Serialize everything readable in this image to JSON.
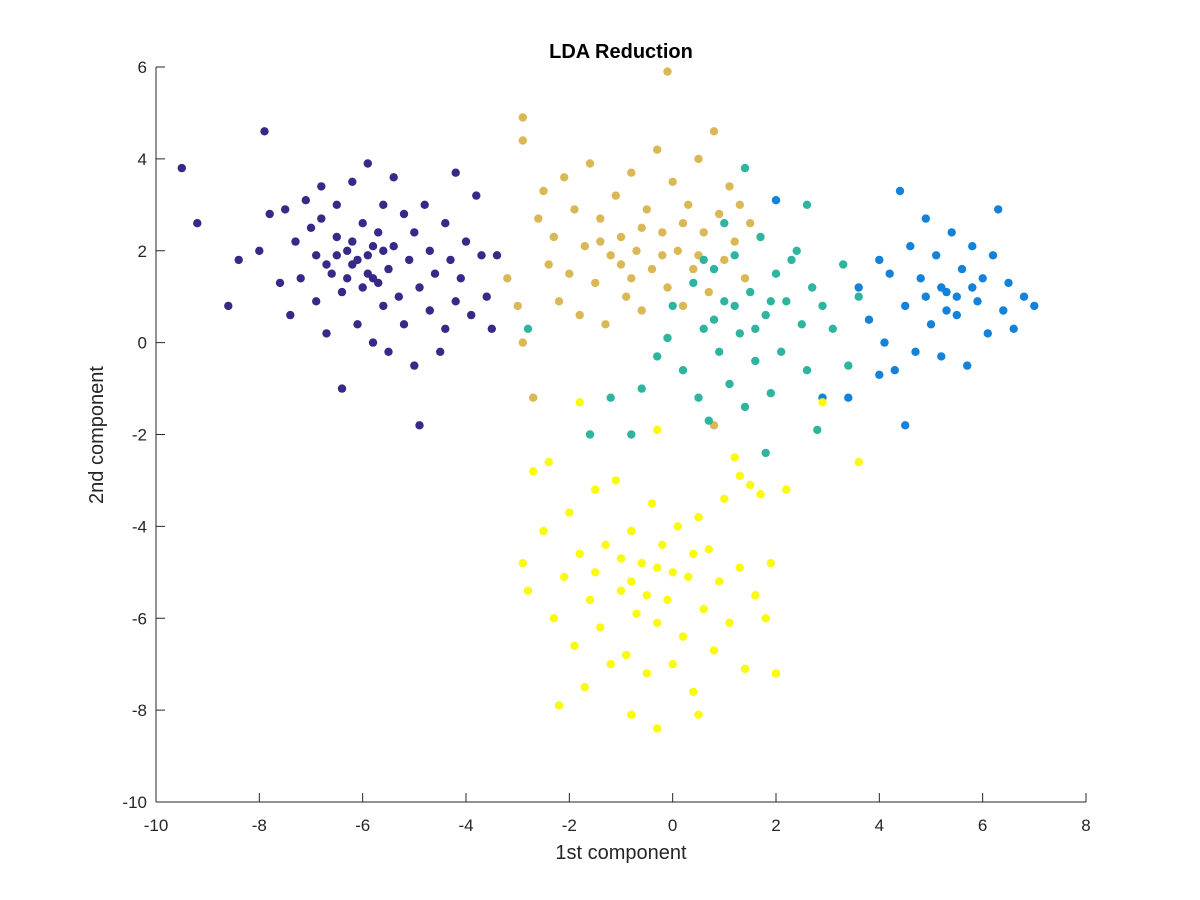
{
  "chart_data": {
    "type": "scatter",
    "title": "LDA Reduction",
    "xlabel": "1st component",
    "ylabel": "2nd component",
    "xlim": [
      -10,
      8
    ],
    "ylim": [
      -10,
      6
    ],
    "xticks": [
      -10,
      -8,
      -6,
      -4,
      -2,
      0,
      2,
      4,
      6,
      8
    ],
    "yticks": [
      -10,
      -8,
      -6,
      -4,
      -2,
      0,
      2,
      4,
      6
    ],
    "xtick_labels": [
      "-10",
      "-8",
      "-6",
      "-4",
      "-2",
      "0",
      "2",
      "4",
      "6",
      "8"
    ],
    "ytick_labels": [
      "-10",
      "-8",
      "-6",
      "-4",
      "-2",
      "0",
      "2",
      "4",
      "6"
    ],
    "grid": false,
    "series": [
      {
        "color": "#352a87",
        "points": [
          [
            -9.5,
            3.8
          ],
          [
            -9.2,
            2.6
          ],
          [
            -8.6,
            0.8
          ],
          [
            -8.4,
            1.8
          ],
          [
            -8.0,
            2.0
          ],
          [
            -7.9,
            4.6
          ],
          [
            -7.8,
            2.8
          ],
          [
            -7.6,
            1.3
          ],
          [
            -7.5,
            2.9
          ],
          [
            -7.4,
            0.6
          ],
          [
            -7.3,
            2.2
          ],
          [
            -7.2,
            1.4
          ],
          [
            -7.1,
            3.1
          ],
          [
            -7.0,
            2.5
          ],
          [
            -6.9,
            0.9
          ],
          [
            -6.9,
            1.9
          ],
          [
            -6.8,
            3.4
          ],
          [
            -6.8,
            2.7
          ],
          [
            -6.7,
            0.2
          ],
          [
            -6.6,
            1.5
          ],
          [
            -6.5,
            2.3
          ],
          [
            -6.5,
            3.0
          ],
          [
            -6.4,
            -1.0
          ],
          [
            -6.4,
            1.1
          ],
          [
            -6.3,
            2.0
          ],
          [
            -6.2,
            1.7
          ],
          [
            -6.2,
            3.5
          ],
          [
            -6.1,
            0.4
          ],
          [
            -6.0,
            1.2
          ],
          [
            -6.0,
            2.6
          ],
          [
            -5.9,
            3.9
          ],
          [
            -5.9,
            1.9
          ],
          [
            -5.8,
            0.0
          ],
          [
            -5.8,
            1.4
          ],
          [
            -5.7,
            2.4
          ],
          [
            -5.6,
            0.8
          ],
          [
            -5.6,
            3.0
          ],
          [
            -5.5,
            1.6
          ],
          [
            -5.5,
            -0.2
          ],
          [
            -5.4,
            2.1
          ],
          [
            -5.4,
            3.6
          ],
          [
            -5.3,
            1.0
          ],
          [
            -5.2,
            2.8
          ],
          [
            -5.2,
            0.4
          ],
          [
            -5.1,
            1.8
          ],
          [
            -5.0,
            -0.5
          ],
          [
            -5.0,
            2.4
          ],
          [
            -4.9,
            1.2
          ],
          [
            -4.9,
            -1.8
          ],
          [
            -4.8,
            3.0
          ],
          [
            -4.7,
            0.7
          ],
          [
            -4.7,
            2.0
          ],
          [
            -4.6,
            1.5
          ],
          [
            -4.5,
            -0.2
          ],
          [
            -4.4,
            2.6
          ],
          [
            -4.4,
            0.3
          ],
          [
            -4.3,
            1.8
          ],
          [
            -4.2,
            3.7
          ],
          [
            -4.2,
            0.9
          ],
          [
            -4.1,
            1.4
          ],
          [
            -4.0,
            2.2
          ],
          [
            -3.9,
            0.6
          ],
          [
            -3.8,
            3.2
          ],
          [
            -3.7,
            1.9
          ],
          [
            -3.6,
            1.0
          ],
          [
            -3.5,
            0.3
          ],
          [
            -3.4,
            1.9
          ],
          [
            -6.7,
            1.7
          ],
          [
            -6.3,
            1.4
          ],
          [
            -6.1,
            1.8
          ],
          [
            -5.9,
            1.5
          ],
          [
            -5.7,
            1.3
          ],
          [
            -5.6,
            2.0
          ],
          [
            -6.5,
            1.9
          ],
          [
            -6.2,
            2.2
          ],
          [
            -5.8,
            2.1
          ]
        ]
      },
      {
        "color": "#d9b855",
        "points": [
          [
            -2.9,
            4.9
          ],
          [
            -2.9,
            4.4
          ],
          [
            -3.2,
            1.4
          ],
          [
            -3.0,
            0.8
          ],
          [
            -2.9,
            0.0
          ],
          [
            -2.6,
            2.7
          ],
          [
            -2.5,
            3.3
          ],
          [
            -2.4,
            1.7
          ],
          [
            -2.3,
            2.3
          ],
          [
            -2.2,
            0.9
          ],
          [
            -2.1,
            3.6
          ],
          [
            -2.0,
            1.5
          ],
          [
            -1.9,
            2.9
          ],
          [
            -1.8,
            0.6
          ],
          [
            -1.7,
            2.1
          ],
          [
            -1.6,
            3.9
          ],
          [
            -1.5,
            1.3
          ],
          [
            -1.4,
            2.7
          ],
          [
            -1.3,
            0.4
          ],
          [
            -1.2,
            1.9
          ],
          [
            -1.1,
            3.2
          ],
          [
            -1.0,
            2.3
          ],
          [
            -0.9,
            1.0
          ],
          [
            -0.8,
            3.7
          ],
          [
            -0.7,
            2.0
          ],
          [
            -0.6,
            0.7
          ],
          [
            -0.5,
            2.9
          ],
          [
            -0.4,
            1.6
          ],
          [
            -0.3,
            4.2
          ],
          [
            -0.2,
            2.4
          ],
          [
            -0.1,
            1.2
          ],
          [
            0.0,
            3.5
          ],
          [
            -0.1,
            5.9
          ],
          [
            0.1,
            2.0
          ],
          [
            0.2,
            0.8
          ],
          [
            0.3,
            3.0
          ],
          [
            0.4,
            1.6
          ],
          [
            0.5,
            4.0
          ],
          [
            0.6,
            2.4
          ],
          [
            0.7,
            1.1
          ],
          [
            0.8,
            4.6
          ],
          [
            0.9,
            2.8
          ],
          [
            1.0,
            1.8
          ],
          [
            1.1,
            3.4
          ],
          [
            1.2,
            2.2
          ],
          [
            1.3,
            3.0
          ],
          [
            1.4,
            1.4
          ],
          [
            1.5,
            2.6
          ],
          [
            -1.4,
            2.2
          ],
          [
            -1.0,
            1.7
          ],
          [
            -0.6,
            2.5
          ],
          [
            -0.2,
            1.9
          ],
          [
            0.2,
            2.6
          ],
          [
            -0.8,
            1.4
          ],
          [
            0.5,
            1.9
          ],
          [
            -2.7,
            -1.2
          ],
          [
            0.8,
            -1.8
          ]
        ]
      },
      {
        "color": "#2fb59f",
        "points": [
          [
            -1.6,
            -2.0
          ],
          [
            -1.2,
            -1.2
          ],
          [
            -0.8,
            -2.0
          ],
          [
            -2.8,
            0.3
          ],
          [
            -0.6,
            -1.0
          ],
          [
            -0.3,
            -0.3
          ],
          [
            0.0,
            0.8
          ],
          [
            0.2,
            -0.6
          ],
          [
            0.4,
            1.3
          ],
          [
            0.5,
            -1.2
          ],
          [
            0.6,
            0.3
          ],
          [
            0.7,
            -1.7
          ],
          [
            0.8,
            1.6
          ],
          [
            0.9,
            -0.2
          ],
          [
            1.0,
            0.9
          ],
          [
            1.1,
            -0.9
          ],
          [
            1.2,
            1.9
          ],
          [
            1.3,
            0.2
          ],
          [
            1.4,
            -1.4
          ],
          [
            1.5,
            1.1
          ],
          [
            1.6,
            -0.4
          ],
          [
            1.7,
            2.3
          ],
          [
            1.8,
            0.6
          ],
          [
            1.9,
            -1.1
          ],
          [
            2.0,
            1.5
          ],
          [
            2.1,
            -0.2
          ],
          [
            2.2,
            0.9
          ],
          [
            2.4,
            2.0
          ],
          [
            2.5,
            0.4
          ],
          [
            2.6,
            -0.6
          ],
          [
            2.7,
            1.2
          ],
          [
            2.8,
            -1.9
          ],
          [
            2.9,
            0.8
          ],
          [
            3.1,
            0.3
          ],
          [
            3.3,
            1.7
          ],
          [
            3.4,
            -0.5
          ],
          [
            3.6,
            1.0
          ],
          [
            1.8,
            -2.4
          ],
          [
            1.0,
            2.6
          ],
          [
            1.4,
            3.8
          ],
          [
            0.8,
            0.5
          ],
          [
            1.2,
            0.8
          ],
          [
            1.6,
            0.3
          ],
          [
            2.3,
            1.8
          ],
          [
            -0.1,
            0.1
          ],
          [
            0.6,
            1.8
          ],
          [
            1.9,
            0.9
          ],
          [
            2.6,
            3.0
          ]
        ]
      },
      {
        "color": "#1482d9",
        "points": [
          [
            3.6,
            1.2
          ],
          [
            3.8,
            0.5
          ],
          [
            4.0,
            1.8
          ],
          [
            4.1,
            0.0
          ],
          [
            4.2,
            1.5
          ],
          [
            4.3,
            -0.6
          ],
          [
            4.4,
            3.3
          ],
          [
            4.5,
            0.8
          ],
          [
            4.6,
            2.1
          ],
          [
            4.7,
            -0.2
          ],
          [
            4.8,
            1.4
          ],
          [
            4.9,
            2.7
          ],
          [
            5.0,
            0.4
          ],
          [
            5.1,
            1.9
          ],
          [
            5.2,
            -0.3
          ],
          [
            5.3,
            1.1
          ],
          [
            5.4,
            2.4
          ],
          [
            5.5,
            0.6
          ],
          [
            5.6,
            1.6
          ],
          [
            5.7,
            -0.5
          ],
          [
            5.8,
            2.1
          ],
          [
            5.9,
            0.9
          ],
          [
            6.0,
            1.4
          ],
          [
            6.1,
            0.2
          ],
          [
            6.2,
            1.9
          ],
          [
            6.3,
            2.9
          ],
          [
            6.4,
            0.7
          ],
          [
            6.5,
            1.3
          ],
          [
            6.6,
            0.3
          ],
          [
            6.8,
            1.0
          ],
          [
            7.0,
            0.8
          ],
          [
            4.5,
            -1.8
          ],
          [
            3.4,
            -1.2
          ],
          [
            4.0,
            -0.7
          ],
          [
            5.2,
            1.2
          ],
          [
            5.5,
            1.0
          ],
          [
            5.8,
            1.2
          ],
          [
            4.9,
            1.0
          ],
          [
            5.3,
            0.7
          ],
          [
            2.9,
            -1.2
          ],
          [
            2.0,
            3.1
          ]
        ]
      },
      {
        "color": "#f9fb0e",
        "points": [
          [
            -2.7,
            -2.8
          ],
          [
            -2.4,
            -2.6
          ],
          [
            -2.9,
            -4.8
          ],
          [
            -2.8,
            -5.4
          ],
          [
            -2.5,
            -4.1
          ],
          [
            -2.3,
            -6.0
          ],
          [
            -2.2,
            -7.9
          ],
          [
            -2.1,
            -5.1
          ],
          [
            -2.0,
            -3.7
          ],
          [
            -1.9,
            -6.6
          ],
          [
            -1.8,
            -4.6
          ],
          [
            -1.7,
            -7.5
          ],
          [
            -1.6,
            -5.6
          ],
          [
            -1.5,
            -3.2
          ],
          [
            -1.4,
            -6.2
          ],
          [
            -1.3,
            -4.4
          ],
          [
            -1.2,
            -7.0
          ],
          [
            -1.1,
            -3.0
          ],
          [
            -1.0,
            -5.4
          ],
          [
            -0.9,
            -6.8
          ],
          [
            -0.8,
            -4.1
          ],
          [
            -0.8,
            -8.1
          ],
          [
            -0.7,
            -5.9
          ],
          [
            -0.6,
            -4.8
          ],
          [
            -0.5,
            -7.2
          ],
          [
            -0.4,
            -3.5
          ],
          [
            -0.3,
            -6.1
          ],
          [
            -0.3,
            -8.4
          ],
          [
            -0.2,
            -4.4
          ],
          [
            -0.1,
            -5.6
          ],
          [
            0.0,
            -7.0
          ],
          [
            0.1,
            -4.0
          ],
          [
            0.2,
            -6.4
          ],
          [
            0.3,
            -5.1
          ],
          [
            0.4,
            -7.6
          ],
          [
            0.5,
            -3.8
          ],
          [
            0.5,
            -8.1
          ],
          [
            0.6,
            -5.8
          ],
          [
            0.7,
            -4.5
          ],
          [
            0.8,
            -6.7
          ],
          [
            0.9,
            -5.2
          ],
          [
            1.0,
            -3.4
          ],
          [
            1.1,
            -6.1
          ],
          [
            1.2,
            -2.5
          ],
          [
            1.3,
            -4.9
          ],
          [
            1.4,
            -7.1
          ],
          [
            1.5,
            -3.1
          ],
          [
            1.6,
            -5.5
          ],
          [
            1.7,
            -3.3
          ],
          [
            1.8,
            -6.0
          ],
          [
            1.9,
            -4.8
          ],
          [
            2.0,
            -7.2
          ],
          [
            2.2,
            -3.2
          ],
          [
            -1.5,
            -5.0
          ],
          [
            -1.0,
            -4.7
          ],
          [
            -0.5,
            -5.5
          ],
          [
            0.0,
            -5.0
          ],
          [
            0.4,
            -4.6
          ],
          [
            -0.8,
            -5.2
          ],
          [
            -0.3,
            -4.9
          ],
          [
            -1.8,
            -1.3
          ],
          [
            -0.3,
            -1.9
          ],
          [
            2.9,
            -1.3
          ],
          [
            3.6,
            -2.6
          ],
          [
            1.3,
            -2.9
          ]
        ]
      }
    ]
  }
}
